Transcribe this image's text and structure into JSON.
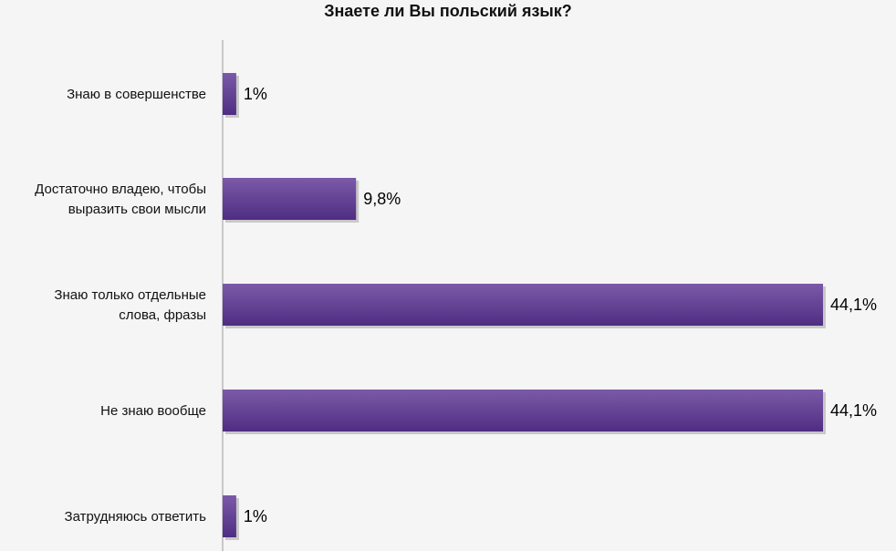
{
  "chart_data": {
    "type": "bar",
    "orientation": "horizontal",
    "title": "Знаете ли Вы польский язык?",
    "categories": [
      "Знаю в совершенстве",
      "Достаточно владею, чтобы выразить свои мысли",
      "Знаю только отдельные слова, фразы",
      "Не знаю вообще",
      "Затрудняюсь ответить"
    ],
    "category_lines": [
      [
        "Знаю в совершенстве"
      ],
      [
        "Достаточно владею, чтобы",
        "выразить свои мысли"
      ],
      [
        "Знаю только отдельные",
        "слова, фразы"
      ],
      [
        "Не знаю вообще"
      ],
      [
        "Затрудняюсь ответить"
      ]
    ],
    "values": [
      1,
      9.8,
      44.1,
      44.1,
      1
    ],
    "value_labels": [
      "1%",
      "9,8%",
      "44,1%",
      "44,1%",
      "1%"
    ],
    "xlim": [
      0,
      44.1
    ],
    "grid": false,
    "legend": "none",
    "colors": {
      "bar_top": "#7b5aa8",
      "bar_bottom": "#4f2d82",
      "axis": "#9a9a9a",
      "background": "#f5f5f5"
    }
  }
}
